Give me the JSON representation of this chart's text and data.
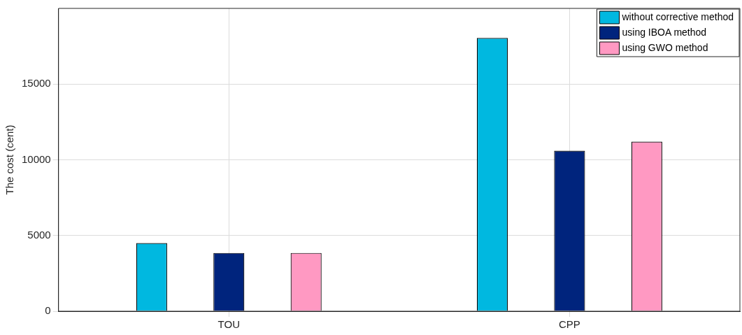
{
  "chart_data": {
    "type": "bar",
    "ylabel": "The cost (cent)",
    "categories": [
      "TOU",
      "CPP"
    ],
    "series": [
      {
        "name": "without corrective method",
        "color": "#00b8e0",
        "values": [
          4500,
          18050
        ]
      },
      {
        "name": "using IBOA method",
        "color": "#00247d",
        "values": [
          3850,
          10600
        ]
      },
      {
        "name": "using GWO method",
        "color": "#ff99c2",
        "values": [
          3850,
          11200
        ]
      }
    ],
    "ylim": [
      0,
      20000
    ],
    "yticks": [
      0,
      5000,
      10000,
      15000
    ],
    "grid": true,
    "legend": "top right"
  }
}
